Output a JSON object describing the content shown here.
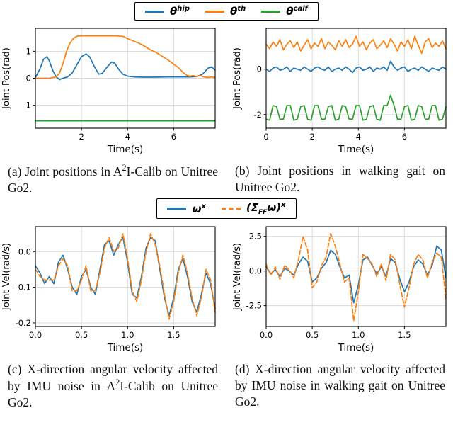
{
  "legend_top": {
    "items": [
      {
        "base": "θ",
        "sup": "hip",
        "color": "#1f77b4",
        "dash": "solid"
      },
      {
        "base": "θ",
        "sup": "th",
        "color": "#ff7f0e",
        "dash": "solid"
      },
      {
        "base": "θ",
        "sup": "calf",
        "color": "#2ca02c",
        "dash": "solid"
      }
    ]
  },
  "legend_bottom": {
    "items": [
      {
        "base": "ω",
        "sup": "x",
        "color": "#1f77b4",
        "dash": "solid"
      },
      {
        "open": "(Σ",
        "sub": "FF",
        "close": "ω)",
        "sup": "x",
        "color": "#ff7f0e",
        "dash": "dashed"
      }
    ]
  },
  "captions": {
    "a": {
      "pre": "(a) Joint positions in A",
      "sup": "2",
      "post": "I-Calib on Unitree Go2."
    },
    "b": {
      "text": "(b) Joint positions in walking gait on Unitree Go2."
    },
    "c": {
      "pre": "(c) X-direction angular velocity affected by IMU noise in A",
      "sup": "2",
      "post": "I-Calib on Unitree Go2."
    },
    "d": {
      "text": "(d) X-direction angular velocity affected by IMU noise in walking gait on Unitree Go2."
    }
  },
  "chart_data": [
    {
      "type": "line",
      "name": "joint-positions-calib",
      "xlabel": "Time(s)",
      "ylabel": "Joint Pos(rad)",
      "xlim": [
        0,
        7.8
      ],
      "ylim": [
        -1.85,
        1.85
      ],
      "xticks": [
        2,
        4,
        6
      ],
      "xtick_labels": [
        "2",
        "4",
        "6"
      ],
      "yticks": [
        -1,
        0,
        1
      ],
      "ytick_labels": [
        "-1",
        "0",
        "1"
      ],
      "grid": true,
      "legend_position": "top-shared",
      "series": [
        {
          "name": "theta_hip",
          "color": "#1f77b4",
          "x": [
            0,
            0.2,
            0.35,
            0.5,
            0.6,
            0.75,
            0.9,
            1.05,
            1.2,
            1.4,
            1.6,
            1.8,
            2.0,
            2.2,
            2.35,
            2.55,
            2.75,
            2.9,
            3.1,
            3.3,
            3.45,
            3.6,
            3.8,
            4.0,
            4.3,
            4.7,
            5.2,
            5.7,
            6.2,
            6.7,
            7.0,
            7.25,
            7.5,
            7.65,
            7.8
          ],
          "y": [
            0.02,
            0.35,
            0.7,
            0.8,
            0.65,
            0.3,
            0.05,
            -0.05,
            0.0,
            0.05,
            0.2,
            0.5,
            0.8,
            0.9,
            0.8,
            0.45,
            0.15,
            0.18,
            0.4,
            0.6,
            0.55,
            0.35,
            0.15,
            0.08,
            0.05,
            0.04,
            0.04,
            0.05,
            0.05,
            0.05,
            0.06,
            0.15,
            0.38,
            0.42,
            0.3
          ]
        },
        {
          "name": "theta_th",
          "color": "#ff7f0e",
          "x": [
            0,
            0.6,
            0.9,
            1.05,
            1.2,
            1.35,
            1.5,
            1.65,
            1.8,
            2.0,
            2.5,
            3.0,
            3.5,
            3.8,
            4.0,
            4.25,
            4.5,
            4.75,
            5.0,
            5.25,
            5.5,
            5.75,
            6.0,
            6.2,
            6.4,
            6.55,
            6.7,
            6.85,
            7.0,
            7.15,
            7.3,
            7.5,
            7.65,
            7.8
          ],
          "y": [
            0.0,
            0.0,
            0.05,
            0.2,
            0.55,
            1.0,
            1.3,
            1.48,
            1.56,
            1.57,
            1.57,
            1.57,
            1.57,
            1.55,
            1.47,
            1.38,
            1.3,
            1.18,
            1.05,
            0.95,
            0.82,
            0.68,
            0.52,
            0.4,
            0.22,
            0.12,
            0.07,
            0.1,
            0.06,
            0.1,
            0.05,
            0.03,
            0.05,
            0.02
          ]
        },
        {
          "name": "theta_calf",
          "color": "#2ca02c",
          "x": [
            0,
            7.8
          ],
          "y": [
            -1.58,
            -1.58
          ]
        }
      ]
    },
    {
      "type": "line",
      "name": "joint-positions-walking",
      "xlabel": "Time(s)",
      "ylabel": "Joint Pos(rad)",
      "xlim": [
        0,
        7.8
      ],
      "ylim": [
        -2.6,
        1.8
      ],
      "xticks": [
        0,
        2,
        4,
        6
      ],
      "xtick_labels": [
        "0",
        "2",
        "4",
        "6"
      ],
      "yticks": [
        -2,
        0
      ],
      "ytick_labels": [
        "-2",
        "0"
      ],
      "grid": true,
      "series": [
        {
          "name": "theta_th",
          "color": "#ff7f0e",
          "x0": 0,
          "dx": 0.15,
          "y": [
            1.1,
            0.9,
            1.2,
            1.0,
            1.3,
            0.85,
            1.1,
            1.25,
            0.95,
            1.2,
            0.8,
            1.05,
            1.3,
            0.9,
            1.15,
            1.0,
            1.35,
            0.9,
            1.2,
            1.05,
            0.85,
            1.25,
            1.0,
            1.3,
            0.95,
            1.1,
            1.45,
            1.0,
            1.2,
            0.85,
            1.15,
            1.3,
            0.9,
            1.05,
            1.25,
            0.95,
            1.35,
            1.1,
            0.8,
            1.2,
            1.0,
            1.3,
            0.9,
            1.45,
            1.05,
            0.7,
            1.2,
            1.35,
            0.95,
            1.15,
            1.0,
            1.25,
            0.9
          ]
        },
        {
          "name": "theta_hip",
          "color": "#1f77b4",
          "x0": 0,
          "dx": 0.15,
          "y": [
            0.0,
            -0.1,
            0.05,
            0.1,
            -0.05,
            0.0,
            0.1,
            -0.1,
            0.05,
            0.0,
            -0.05,
            0.1,
            0.0,
            -0.1,
            0.05,
            0.1,
            0.0,
            -0.05,
            0.1,
            -0.1,
            0.0,
            0.05,
            -0.05,
            0.1,
            0.0,
            -0.15,
            0.05,
            0.1,
            -0.05,
            0.0,
            0.1,
            -0.1,
            0.05,
            0.0,
            0.1,
            -0.05,
            0.35,
            0.1,
            -0.05,
            0.05,
            0.1,
            -0.1,
            0.0,
            0.05,
            -0.05,
            0.1,
            0.0,
            -0.1,
            0.05,
            0.0,
            -0.05,
            0.1,
            0.0
          ]
        },
        {
          "name": "theta_calf",
          "color": "#2ca02c",
          "x0": 0,
          "dx": 0.15,
          "y": [
            -2.2,
            -2.25,
            -1.6,
            -1.65,
            -2.2,
            -2.2,
            -1.6,
            -1.6,
            -2.25,
            -2.2,
            -1.65,
            -1.6,
            -2.2,
            -2.25,
            -1.6,
            -1.6,
            -2.2,
            -2.2,
            -1.65,
            -1.6,
            -2.25,
            -2.2,
            -1.6,
            -1.65,
            -2.2,
            -2.2,
            -1.6,
            -1.6,
            -2.25,
            -2.2,
            -1.65,
            -1.6,
            -2.2,
            -2.25,
            -1.6,
            -1.6,
            -1.15,
            -1.6,
            -2.2,
            -2.2,
            -1.65,
            -1.6,
            -2.25,
            -2.2,
            -1.6,
            -1.65,
            -2.2,
            -2.2,
            -1.6,
            -1.6,
            -2.25,
            -2.2,
            -1.65
          ]
        }
      ]
    },
    {
      "type": "line",
      "name": "angular-velocity-calib",
      "xlabel": "Time(s)",
      "ylabel": "Joint Vel(rad/s)",
      "xlim": [
        0,
        1.95
      ],
      "ylim": [
        -0.21,
        0.07
      ],
      "xticks": [
        0,
        0.5,
        1.0,
        1.5
      ],
      "xtick_labels": [
        "0.0",
        "0.5",
        "1.0",
        "1.5"
      ],
      "yticks": [
        0.0,
        -0.1,
        -0.2
      ],
      "ytick_labels": [
        "0.0",
        "-0.1",
        "-0.2"
      ],
      "grid": true,
      "series": [
        {
          "name": "omega_x",
          "color": "#1f77b4",
          "x0": 0,
          "dx": 0.05,
          "y": [
            -0.04,
            -0.06,
            -0.09,
            -0.07,
            -0.09,
            -0.03,
            -0.01,
            -0.05,
            -0.1,
            -0.12,
            -0.07,
            -0.05,
            -0.1,
            -0.12,
            -0.05,
            0.02,
            0.03,
            -0.01,
            0.02,
            0.04,
            -0.03,
            -0.12,
            -0.13,
            -0.07,
            0.01,
            0.04,
            0.03,
            -0.05,
            -0.13,
            -0.18,
            -0.13,
            -0.05,
            -0.02,
            -0.07,
            -0.14,
            -0.17,
            -0.12,
            -0.06,
            -0.09,
            -0.16
          ]
        },
        {
          "name": "sigma_ff_omega_x",
          "color": "#ff7f0e",
          "dash": "6,3",
          "x0": 0,
          "dx": 0.05,
          "y": [
            -0.05,
            -0.07,
            -0.08,
            -0.08,
            -0.08,
            -0.04,
            -0.02,
            -0.04,
            -0.11,
            -0.11,
            -0.08,
            -0.04,
            -0.11,
            -0.11,
            -0.06,
            0.01,
            0.04,
            0.0,
            0.01,
            0.05,
            -0.02,
            -0.11,
            -0.14,
            -0.08,
            0.0,
            0.05,
            0.02,
            -0.04,
            -0.12,
            -0.19,
            -0.14,
            -0.06,
            -0.01,
            -0.06,
            -0.13,
            -0.18,
            -0.13,
            -0.05,
            -0.08,
            -0.17
          ]
        }
      ]
    },
    {
      "type": "line",
      "name": "angular-velocity-walking",
      "xlabel": "Time(s)",
      "ylabel": "Joint Vel(rad/s)",
      "xlim": [
        0,
        1.95
      ],
      "ylim": [
        -4.0,
        3.2
      ],
      "xticks": [
        0,
        0.5,
        1.0,
        1.5
      ],
      "xtick_labels": [
        "0.0",
        "0.5",
        "1.0",
        "1.5"
      ],
      "yticks": [
        2.5,
        0.0,
        -2.5
      ],
      "ytick_labels": [
        "2.5",
        "0.0",
        "-2.5"
      ],
      "grid": true,
      "series": [
        {
          "name": "omega_x",
          "color": "#1f77b4",
          "x0": 0,
          "dx": 0.05,
          "y": [
            0.3,
            -0.2,
            0.1,
            -0.4,
            0.2,
            0.0,
            -0.3,
            0.5,
            1.0,
            0.7,
            -0.8,
            -0.5,
            0.2,
            0.6,
            1.5,
            1.2,
            0.3,
            -0.5,
            -0.3,
            -2.3,
            -1.0,
            0.8,
            1.0,
            0.4,
            -0.2,
            0.3,
            -0.4,
            0.9,
            0.6,
            -0.6,
            -1.5,
            -0.8,
            0.3,
            0.8,
            0.5,
            -0.3,
            0.4,
            1.8,
            1.5,
            -0.5
          ]
        },
        {
          "name": "sigma_ff_omega_x",
          "color": "#ff7f0e",
          "dash": "6,3",
          "x0": 0,
          "dx": 0.05,
          "y": [
            0.5,
            -0.3,
            0.3,
            -0.6,
            0.4,
            0.1,
            -0.5,
            0.8,
            2.5,
            1.5,
            -1.2,
            -0.8,
            0.4,
            1.0,
            2.7,
            1.8,
            0.5,
            -0.8,
            -0.5,
            -3.6,
            -1.5,
            1.2,
            0.9,
            0.5,
            -0.4,
            0.5,
            -0.7,
            1.2,
            0.8,
            -1.0,
            -2.6,
            -1.2,
            0.5,
            1.2,
            0.8,
            -0.5,
            0.6,
            1.3,
            1.0,
            -2.0
          ]
        }
      ]
    }
  ]
}
